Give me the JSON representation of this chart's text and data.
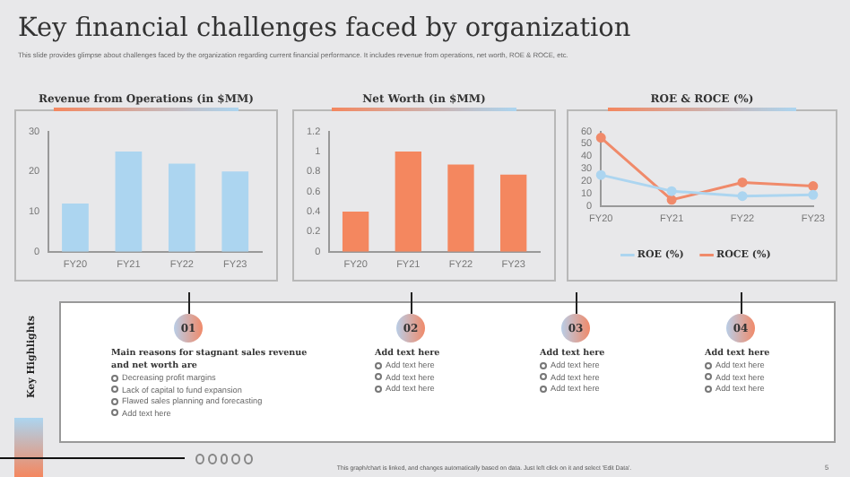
{
  "chart_data": [
    {
      "type": "other",
      "title": "Key financial challenges faced by organization",
      "subtitle": "This slide provides glimpse about challenges faced by the organization regarding current financial performance. It includes revenue from operations, net worth, ROE & ROCE, etc."
    },
    {
      "type": "bar",
      "title": "Revenue from Operations (in $MM)",
      "categories": [
        "FY20",
        "FY21",
        "FY22",
        "FY23"
      ],
      "values": [
        12,
        25,
        22,
        20
      ],
      "color": "#acd5f0",
      "ylim": [
        0,
        30
      ],
      "yticks": [
        0,
        10,
        20,
        30
      ],
      "grid": false,
      "legend": false
    },
    {
      "type": "bar",
      "title": "Net Worth (in $MM)",
      "categories": [
        "FY20",
        "FY21",
        "FY22",
        "FY23"
      ],
      "values": [
        0.4,
        1.0,
        0.87,
        0.77
      ],
      "color": "#f4875f",
      "ylim": [
        0,
        1.2
      ],
      "yticks": [
        0,
        0.2,
        0.4,
        0.6,
        0.8,
        1,
        1.2
      ],
      "grid": false,
      "legend": false
    },
    {
      "type": "line",
      "title": "ROE & ROCE (%)",
      "categories": [
        "FY20",
        "FY21",
        "FY22",
        "FY23"
      ],
      "series": [
        {
          "name": "ROE (%)",
          "color": "#acd5f0",
          "values": [
            25,
            12,
            8,
            9
          ]
        },
        {
          "name": "ROCE (%)",
          "color": "#f08a6a",
          "values": [
            55,
            5,
            19,
            16
          ]
        }
      ],
      "ylim": [
        0,
        60
      ],
      "yticks": [
        0,
        10,
        20,
        30,
        40,
        50,
        60
      ],
      "grid": false,
      "legend": "bottom",
      "marker": "circle",
      "line_style": "solid"
    },
    {
      "type": "other",
      "title": "Key Highlights"
    },
    {
      "type": "other",
      "annotations": [
        "01",
        "Main reasons for stagnant sales revenue and net worth are",
        "Decreasing profit margins",
        "Lack of capital to fund expansion",
        "Flawed sales planning and forecasting",
        "Add text here"
      ]
    },
    {
      "type": "other",
      "annotations": [
        "02",
        "Add text here",
        "Add text here",
        "Add text here",
        "Add text here"
      ]
    },
    {
      "type": "other",
      "annotations": [
        "03",
        "Add text here",
        "Add text here",
        "Add text here",
        "Add text here"
      ]
    },
    {
      "type": "other",
      "annotations": [
        "04",
        "Add text here",
        "Add text here",
        "Add text here",
        "Add text here"
      ]
    },
    {
      "type": "other",
      "annotations": [
        "This graph/chart is linked, and changes automatically based on data. Just left click on it and select 'Edit Data'.",
        "5"
      ]
    }
  ]
}
